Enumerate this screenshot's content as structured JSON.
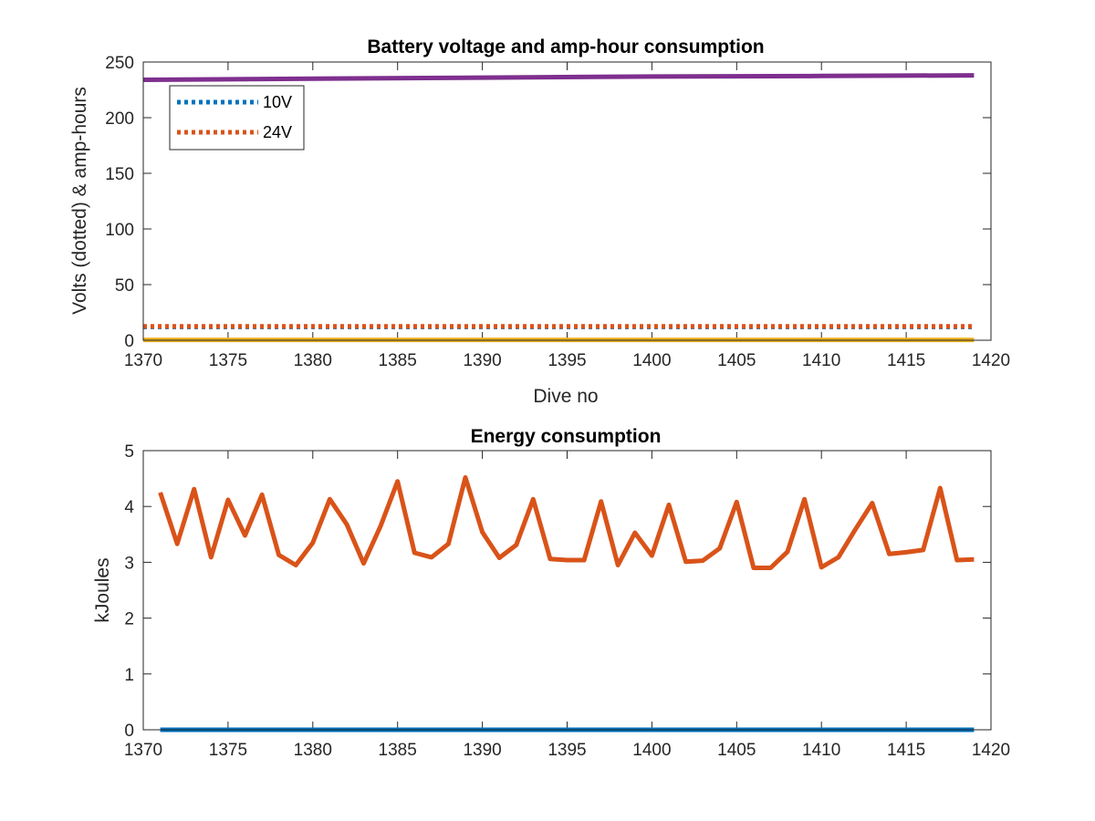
{
  "chart_data": [
    {
      "type": "line",
      "title": "Battery voltage and amp-hour consumption",
      "xlabel": "Dive no",
      "ylabel": "Volts (dotted) & amp-hours",
      "xlim": [
        1370,
        1420
      ],
      "ylim": [
        0,
        250
      ],
      "xticks": [
        1370,
        1375,
        1380,
        1385,
        1390,
        1395,
        1400,
        1405,
        1410,
        1415,
        1420
      ],
      "yticks": [
        0,
        50,
        100,
        150,
        200,
        250
      ],
      "grid": false,
      "legend_position": "top-left",
      "series": [
        {
          "name": "10V",
          "style": "dotted",
          "color": "#0072BD",
          "x": [
            1370,
            1419
          ],
          "y": [
            12,
            12
          ]
        },
        {
          "name": "24V",
          "style": "dotted",
          "color": "#D95319",
          "x": [
            1370,
            1419
          ],
          "y": [
            12.5,
            12.5
          ]
        },
        {
          "style": "solid",
          "color": "#EDB120",
          "x": [
            1370,
            1419
          ],
          "y": [
            0.3,
            0.3
          ]
        },
        {
          "style": "solid",
          "color": "#7E2F8E",
          "x": [
            1370,
            1380,
            1390,
            1400,
            1410,
            1419
          ],
          "y": [
            234,
            235,
            236,
            237,
            237.5,
            238
          ]
        }
      ]
    },
    {
      "type": "line",
      "title": "Energy consumption",
      "xlabel": "",
      "ylabel": "kJoules",
      "xlim": [
        1370,
        1420
      ],
      "ylim": [
        0,
        5
      ],
      "xticks": [
        1370,
        1375,
        1380,
        1385,
        1390,
        1395,
        1400,
        1405,
        1410,
        1415,
        1420
      ],
      "yticks": [
        0,
        1,
        2,
        3,
        4,
        5
      ],
      "grid": false,
      "series": [
        {
          "style": "solid",
          "color": "#0072BD",
          "x": [
            1371,
            1419
          ],
          "y": [
            0,
            0
          ]
        },
        {
          "style": "solid",
          "color": "#D95319",
          "x": [
            1371,
            1372,
            1373,
            1374,
            1375,
            1376,
            1377,
            1378,
            1379,
            1380,
            1381,
            1382,
            1383,
            1384,
            1385,
            1386,
            1387,
            1388,
            1389,
            1390,
            1391,
            1392,
            1393,
            1394,
            1395,
            1396,
            1397,
            1398,
            1399,
            1400,
            1401,
            1402,
            1403,
            1404,
            1405,
            1406,
            1407,
            1408,
            1409,
            1410,
            1411,
            1412,
            1413,
            1414,
            1415,
            1416,
            1417,
            1418,
            1419
          ],
          "y": [
            4.25,
            3.33,
            4.31,
            3.09,
            4.12,
            3.48,
            4.21,
            3.13,
            2.95,
            3.35,
            4.13,
            3.68,
            2.98,
            3.65,
            4.45,
            3.17,
            3.09,
            3.33,
            4.52,
            3.54,
            3.08,
            3.31,
            4.13,
            3.06,
            3.04,
            3.04,
            4.09,
            2.95,
            3.53,
            3.12,
            4.03,
            3.01,
            3.03,
            3.25,
            4.08,
            2.9,
            2.9,
            3.19,
            4.13,
            2.91,
            3.09,
            3.59,
            4.06,
            3.15,
            3.18,
            3.22,
            4.33,
            3.04,
            3.05
          ]
        }
      ]
    }
  ]
}
